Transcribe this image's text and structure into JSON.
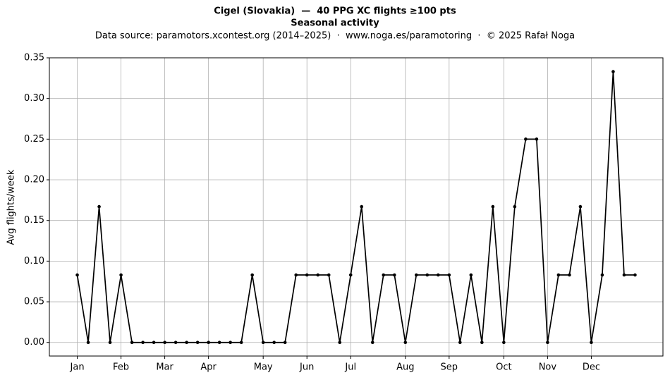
{
  "chart_data": {
    "type": "line",
    "title": "Cigel (Slovakia)  —  40 PPG XC flights ≥100 pts",
    "subtitle": "Seasonal activity",
    "source": "Data source: paramotors.xcontest.org (2014–2025)  ·  www.noga.es/paramotoring  ·  © 2025 Rafał Noga",
    "y_label": "Avg flights/week",
    "x": [
      1,
      2,
      3,
      4,
      5,
      6,
      7,
      8,
      9,
      10,
      11,
      12,
      13,
      14,
      15,
      16,
      17,
      18,
      19,
      20,
      21,
      22,
      23,
      24,
      25,
      26,
      27,
      28,
      29,
      30,
      31,
      32,
      33,
      34,
      35,
      36,
      37,
      38,
      39,
      40,
      41,
      42,
      43,
      44,
      45,
      46,
      47,
      48,
      49,
      50,
      51,
      52
    ],
    "series": [
      {
        "color": "#000000",
        "values": [
          0.083,
          0,
          0.167,
          0,
          0.083,
          0,
          0,
          0,
          0,
          0,
          0,
          0,
          0,
          0,
          0,
          0,
          0.083,
          0,
          0,
          0,
          0.083,
          0.083,
          0.083,
          0.083,
          0,
          0.083,
          0.167,
          0,
          0.083,
          0.083,
          0,
          0.083,
          0.083,
          0.083,
          0.083,
          0,
          0.083,
          0,
          0.167,
          0,
          0.167,
          0.25,
          0.25,
          0,
          0.083,
          0.083,
          0.167,
          0,
          0.083,
          0.333,
          0.083,
          0.083
        ]
      }
    ],
    "xlim": [
      -1.55,
      54.55
    ],
    "xticks": [
      {
        "value": 1,
        "label": "Jan"
      },
      {
        "value": 5,
        "label": "Feb"
      },
      {
        "value": 9,
        "label": "Mar"
      },
      {
        "value": 13,
        "label": "Apr"
      },
      {
        "value": 18,
        "label": "May"
      },
      {
        "value": 22,
        "label": "Jun"
      },
      {
        "value": 26,
        "label": "Jul"
      },
      {
        "value": 31,
        "label": "Aug"
      },
      {
        "value": 35,
        "label": "Sep"
      },
      {
        "value": 40,
        "label": "Oct"
      },
      {
        "value": 44,
        "label": "Nov"
      },
      {
        "value": 48,
        "label": "Dec"
      }
    ],
    "ylim": [
      -0.0167,
      0.35
    ],
    "yticks": [
      {
        "value": 0,
        "label": "0.00"
      },
      {
        "value": 0.05,
        "label": "0.05"
      },
      {
        "value": 0.1,
        "label": "0.10"
      },
      {
        "value": 0.15,
        "label": "0.15"
      },
      {
        "value": 0.2,
        "label": "0.20"
      },
      {
        "value": 0.25,
        "label": "0.25"
      },
      {
        "value": 0.3,
        "label": "0.30"
      },
      {
        "value": 0.35,
        "label": "0.35"
      }
    ],
    "grid": true
  }
}
